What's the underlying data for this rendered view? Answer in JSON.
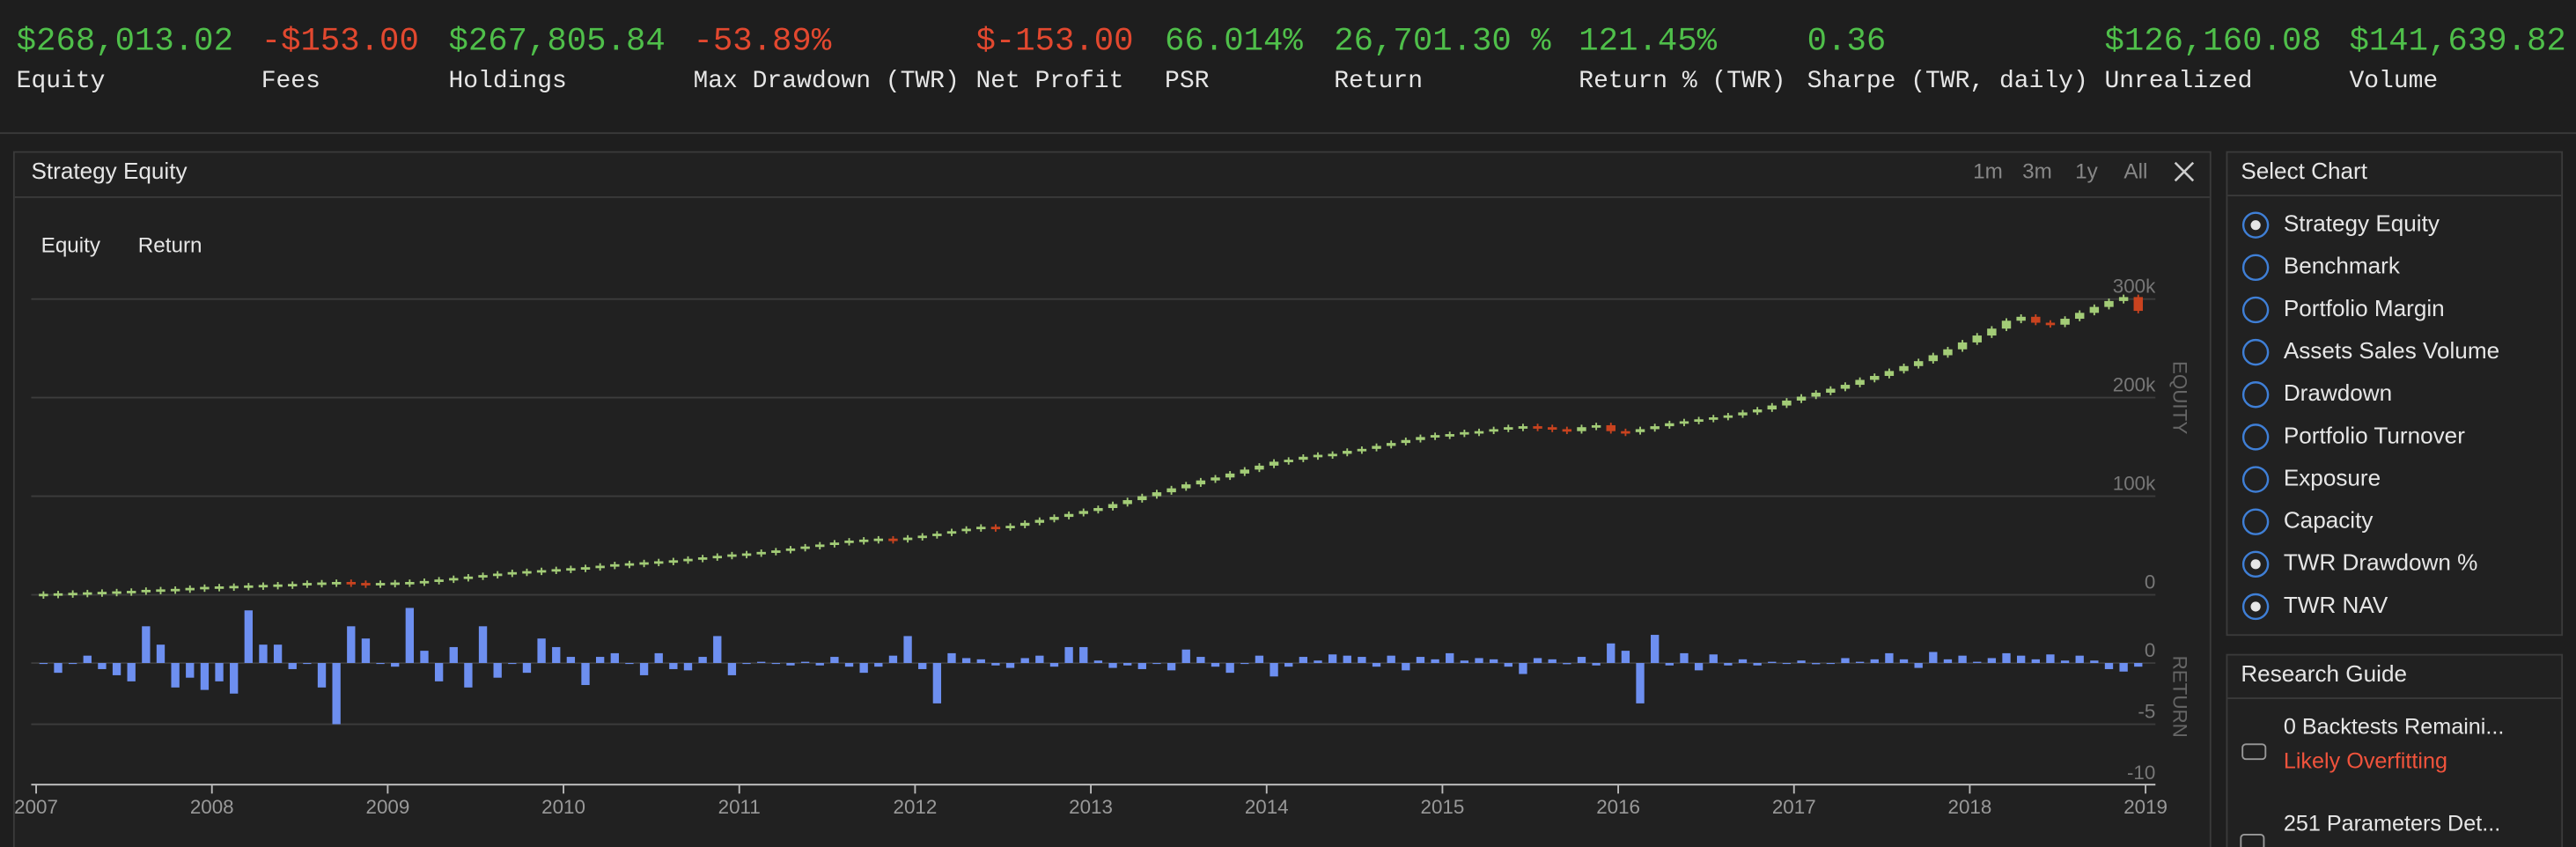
{
  "header": {
    "stats": [
      {
        "value": "$268,013.02",
        "label": "Equity",
        "color": "#4fbf4a"
      },
      {
        "value": "-$153.00",
        "label": "Fees",
        "color": "#e2482f"
      },
      {
        "value": "$267,805.84",
        "label": "Holdings",
        "color": "#4fbf4a"
      },
      {
        "value": "-53.89%",
        "label": "Max Drawdown (TWR)",
        "color": "#e2482f"
      },
      {
        "value": "$-153.00",
        "label": "Net Profit",
        "color": "#e2482f"
      },
      {
        "value": "66.014%",
        "label": "PSR",
        "color": "#4fbf4a"
      },
      {
        "value": "26,701.30 %",
        "label": "Return",
        "color": "#4fbf4a"
      },
      {
        "value": "121.45%",
        "label": "Return % (TWR)",
        "color": "#4fbf4a"
      },
      {
        "value": "0.36",
        "label": "Sharpe (TWR, daily)",
        "color": "#4fbf4a"
      },
      {
        "value": "$126,160.08",
        "label": "Unrealized",
        "color": "#4fbf4a"
      },
      {
        "value": "$141,639.82",
        "label": "Volume",
        "color": "#4fbf4a"
      }
    ]
  },
  "panel": {
    "title": "Strategy Equity",
    "ranges": [
      "1m",
      "3m",
      "1y",
      "All"
    ]
  },
  "chart_data": [
    {
      "type": "candlestick",
      "y_label": "EQUITY",
      "ylim": [
        0,
        400
      ],
      "yticks": [
        0,
        {
          "value": 100,
          "label": "100k"
        },
        {
          "value": 200,
          "label": "200k"
        },
        {
          "value": 300,
          "label": "300k"
        }
      ],
      "grid": true,
      "series": [
        {
          "name": "Equity",
          "color": "#a3cc77",
          "down_color": "#c9431f",
          "values": [
            1,
            1.5,
            2,
            2.5,
            3,
            3.5,
            4,
            5,
            5.5,
            6,
            7,
            8,
            8.5,
            9,
            9.5,
            10,
            10.5,
            11,
            12,
            12.5,
            13,
            12,
            11.5,
            12,
            12.5,
            13,
            14,
            15.5,
            17,
            18.5,
            20,
            21.5,
            23,
            24,
            25,
            26,
            27,
            28,
            29.5,
            31,
            32,
            33,
            34,
            35,
            36.5,
            38,
            39.5,
            41,
            42,
            43.5,
            45,
            47,
            49,
            51,
            53,
            55,
            56,
            57,
            56,
            58,
            60,
            62,
            64.5,
            67,
            69,
            68,
            70,
            73,
            76,
            79,
            82,
            85,
            88,
            92,
            96,
            100,
            104,
            108,
            112,
            116,
            119,
            123,
            127,
            131,
            135,
            137,
            140,
            142,
            143,
            146,
            148,
            151,
            154,
            157,
            160,
            162,
            163,
            165,
            166,
            168,
            170,
            171,
            170,
            168,
            166,
            170,
            172,
            166,
            165,
            168,
            171,
            174,
            176,
            178,
            180,
            182,
            185,
            188,
            192,
            197,
            201,
            205,
            209,
            213,
            218,
            222,
            227,
            232,
            237,
            243,
            249,
            256,
            263,
            270,
            278,
            282,
            276,
            274,
            280,
            286,
            292,
            298,
            302,
            288
          ]
        }
      ]
    },
    {
      "type": "bar",
      "y_label": "RETURN",
      "ylim": [
        -10,
        4.5
      ],
      "yticks": [
        0,
        -5,
        -10
      ],
      "grid": true,
      "xlim": [
        2007,
        2019
      ],
      "xticks": [
        2007,
        2008,
        2009,
        2010,
        2011,
        2012,
        2013,
        2014,
        2015,
        2016,
        2017,
        2018,
        2019
      ],
      "series": [
        {
          "name": "Return",
          "color": "#6d8ff0",
          "values": [
            0,
            -0.8,
            0,
            0.6,
            -0.5,
            -1,
            -1.5,
            3,
            1.5,
            -2,
            -1.2,
            -2.2,
            -1.5,
            -2.5,
            4.3,
            1.5,
            1.5,
            -0.5,
            0,
            -2,
            -5,
            3,
            2,
            0,
            -0.3,
            4.5,
            1,
            -1.5,
            1.3,
            -2,
            3,
            -1.2,
            0,
            -0.8,
            2,
            1.3,
            0.5,
            -1.8,
            0.5,
            0.8,
            0,
            -1,
            0.8,
            -0.5,
            -0.6,
            0.5,
            2.2,
            -1,
            0,
            0.1,
            0,
            -0.2,
            0.1,
            -0.2,
            0.5,
            -0.3,
            -0.8,
            -0.3,
            0.6,
            2.2,
            -0.5,
            -3.3,
            0.8,
            0.4,
            0.3,
            -0.2,
            -0.4,
            0.4,
            0.6,
            -0.3,
            1.3,
            1.3,
            0.2,
            -0.4,
            -0.2,
            -0.5,
            0,
            -0.6,
            1.1,
            0.5,
            -0.3,
            -0.8,
            0,
            0.6,
            -1.1,
            -0.3,
            0.5,
            0.2,
            0.7,
            0.6,
            0.5,
            -0.3,
            0.6,
            -0.6,
            0.5,
            0.3,
            0.8,
            0.2,
            0.4,
            0.3,
            -0.3,
            -0.9,
            0.4,
            0.3,
            -0.1,
            0.5,
            -0.2,
            1.6,
            1,
            -3.3,
            2.3,
            -0.2,
            0.8,
            -0.6,
            0.7,
            -0.2,
            0.3,
            -0.2,
            0.1,
            0,
            0.2,
            -0.1,
            0,
            0.4,
            0.1,
            0.3,
            0.8,
            0.3,
            -0.4,
            0.9,
            0.3,
            0.6,
            0.1,
            0.4,
            0.8,
            0.6,
            0.3,
            0.7,
            0.2,
            0.6,
            0.2,
            -0.5,
            -0.7,
            -0.3
          ]
        }
      ]
    }
  ],
  "sidebar": {
    "title": "Select Chart",
    "items": [
      {
        "label": "Strategy Equity",
        "checked": true
      },
      {
        "label": "Benchmark",
        "checked": false
      },
      {
        "label": "Portfolio Margin",
        "checked": false
      },
      {
        "label": "Assets Sales Volume",
        "checked": false
      },
      {
        "label": "Drawdown",
        "checked": false
      },
      {
        "label": "Portfolio Turnover",
        "checked": false
      },
      {
        "label": "Exposure",
        "checked": false
      },
      {
        "label": "Capacity",
        "checked": false
      },
      {
        "label": "TWR Drawdown %",
        "checked": true
      },
      {
        "label": "TWR NAV",
        "checked": true
      }
    ]
  },
  "guide": {
    "title": "Research Guide",
    "items": [
      {
        "label": "0 Backtests Remaini...",
        "note": "Likely Overfitting"
      },
      {
        "label": "251 Parameters Det..."
      }
    ]
  }
}
